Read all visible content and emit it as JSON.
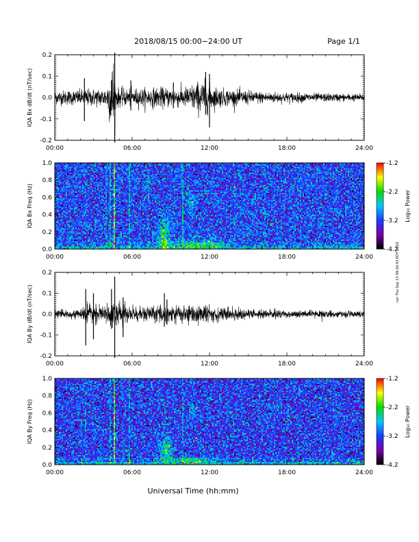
{
  "header": {
    "title": "2018/08/15  00:00−24:00 UT",
    "page": "Page 1/1"
  },
  "side_note": "run Thu Sep 13 09:16:43 EDT 2018",
  "xlabel": "Universal Time (hh:mm)",
  "colorbar": {
    "label": "Log₁₀ Power",
    "ticks": [
      -1.2,
      -2.2,
      -3.2,
      -4.2
    ],
    "tick_labels": [
      "-1.2",
      "-2.2",
      "-3.2",
      "-4.2"
    ],
    "range": [
      -4.2,
      -1.2
    ],
    "stops": [
      "#000000",
      "#7a00a8",
      "#1a3cff",
      "#00c8ff",
      "#00dd00",
      "#ffff00",
      "#ff0000"
    ]
  },
  "chart_data": [
    {
      "type": "line",
      "ylabel": "IQA Bx dB/dt (nT/sec)",
      "xlim": [
        0,
        24
      ],
      "ylim": [
        -0.2,
        0.2
      ],
      "x_tick_labels": [
        "00:00",
        "06:00",
        "12:00",
        "18:00",
        "24:00"
      ],
      "y_tick_labels": [
        "0.2",
        "0.1",
        "0.0",
        "-0.1",
        "-0.2"
      ],
      "y_ticks": [
        0.2,
        0.1,
        0.0,
        -0.1,
        -0.2
      ],
      "envelope": {
        "hours": [
          0,
          2,
          4,
          4.6,
          4.7,
          5,
          6,
          8,
          10,
          11.5,
          12.2,
          13,
          16,
          20,
          24
        ],
        "amp": [
          0.035,
          0.04,
          0.05,
          0.22,
          0.06,
          0.045,
          0.045,
          0.05,
          0.05,
          0.09,
          0.06,
          0.045,
          0.03,
          0.022,
          0.018
        ]
      },
      "spikes": [
        {
          "hour": 2.3,
          "min": -0.11,
          "max": 0.09
        },
        {
          "hour": 4.4,
          "min": -0.06,
          "max": 0.08
        },
        {
          "hour": 4.65,
          "min": -0.21,
          "max": 0.21
        },
        {
          "hour": 5.9,
          "min": -0.06,
          "max": 0.08
        },
        {
          "hour": 9.2,
          "min": -0.05,
          "max": 0.07
        },
        {
          "hour": 12.0,
          "min": -0.14,
          "max": 0.11
        },
        {
          "hour": 11.7,
          "min": -0.08,
          "max": 0.12
        }
      ]
    },
    {
      "type": "heatmap",
      "ylabel": "IQA Bx Freq (Hz)",
      "xlim": [
        0,
        24
      ],
      "ylim": [
        0,
        1.0
      ],
      "x_tick_labels": [
        "00:00",
        "06:00",
        "12:00",
        "18:00",
        "24:00"
      ],
      "y_tick_labels": [
        "1.0",
        "0.8",
        "0.6",
        "0.4",
        "0.2",
        "0.0"
      ],
      "y_ticks": [
        1.0,
        0.8,
        0.6,
        0.4,
        0.2,
        0.0
      ],
      "background_level": -3.2,
      "features": [
        {
          "kind": "blob",
          "hour": 8.5,
          "freq": 0.15,
          "width_h": 0.6,
          "height_f": 0.28,
          "level": -2.2
        },
        {
          "kind": "blob",
          "hour": 10.6,
          "freq": 0.55,
          "width_h": 0.6,
          "height_f": 0.12,
          "level": -2.7
        },
        {
          "kind": "blob",
          "hour": 11.0,
          "freq": 0.05,
          "width_h": 2.5,
          "height_f": 0.08,
          "level": -2.4
        },
        {
          "kind": "stripe",
          "hour": 4.3,
          "level": -2.6
        },
        {
          "kind": "stripe",
          "hour": 4.6,
          "level": -1.8
        },
        {
          "kind": "stripe",
          "hour": 4.0,
          "level": -2.9
        },
        {
          "kind": "stripe",
          "hour": 5.8,
          "level": -2.7
        },
        {
          "kind": "stripe",
          "hour": 7.3,
          "level": -2.9
        },
        {
          "kind": "stripe",
          "hour": 9.95,
          "level": -2.7
        },
        {
          "kind": "stripe",
          "hour": 14.0,
          "level": -3.0
        },
        {
          "kind": "stripe",
          "hour": 16.3,
          "level": -3.0
        },
        {
          "kind": "stripe",
          "hour": 19.1,
          "level": -3.0
        }
      ]
    },
    {
      "type": "line",
      "ylabel": "IQA By dB/dt (nT/sec)",
      "xlim": [
        0,
        24
      ],
      "ylim": [
        -0.2,
        0.2
      ],
      "x_tick_labels": [
        "00:00",
        "06:00",
        "12:00",
        "18:00",
        "24:00"
      ],
      "y_tick_labels": [
        "0.2",
        "0.1",
        "0.0",
        "-0.1",
        "-0.2"
      ],
      "y_ticks": [
        0.2,
        0.1,
        0.0,
        -0.1,
        -0.2
      ],
      "envelope": {
        "hours": [
          0,
          2,
          2.3,
          4,
          4.7,
          5,
          6,
          8,
          9,
          11,
          12.5,
          14,
          18,
          24
        ],
        "amp": [
          0.02,
          0.02,
          0.05,
          0.04,
          0.08,
          0.06,
          0.04,
          0.04,
          0.05,
          0.05,
          0.04,
          0.03,
          0.02,
          0.015
        ]
      },
      "spikes": [
        {
          "hour": 2.4,
          "min": -0.15,
          "max": 0.12
        },
        {
          "hour": 3.0,
          "min": -0.12,
          "max": 0.1
        },
        {
          "hour": 4.4,
          "min": -0.07,
          "max": 0.12
        },
        {
          "hour": 4.65,
          "min": -0.21,
          "max": 0.18
        },
        {
          "hour": 5.3,
          "min": -0.11,
          "max": 0.08
        },
        {
          "hour": 8.5,
          "min": -0.06,
          "max": 0.1
        },
        {
          "hour": 8.7,
          "min": -0.05,
          "max": 0.07
        }
      ]
    },
    {
      "type": "heatmap",
      "ylabel": "IQA By Freq (Hz)",
      "xlim": [
        0,
        24
      ],
      "ylim": [
        0,
        1.0
      ],
      "x_tick_labels": [
        "00:00",
        "06:00",
        "12:00",
        "18:00",
        "24:00"
      ],
      "y_tick_labels": [
        "1.0",
        "0.8",
        "0.6",
        "0.4",
        "0.2",
        "0.0"
      ],
      "y_ticks": [
        1.0,
        0.8,
        0.6,
        0.4,
        0.2,
        0.0
      ],
      "background_level": -3.25,
      "features": [
        {
          "kind": "blob",
          "hour": 8.6,
          "freq": 0.18,
          "width_h": 0.6,
          "height_f": 0.22,
          "level": -2.3
        },
        {
          "kind": "blob",
          "hour": 10.8,
          "freq": 0.62,
          "width_h": 0.5,
          "height_f": 0.12,
          "level": -2.9
        },
        {
          "kind": "blob",
          "hour": 10.5,
          "freq": 0.05,
          "width_h": 2.2,
          "height_f": 0.06,
          "level": -2.5
        },
        {
          "kind": "stripe",
          "hour": 4.3,
          "level": -2.7
        },
        {
          "kind": "stripe",
          "hour": 4.6,
          "level": -2.0
        },
        {
          "kind": "stripe",
          "hour": 5.8,
          "level": -2.8
        },
        {
          "kind": "stripe",
          "hour": 2.4,
          "level": -3.0
        },
        {
          "kind": "stripe",
          "hour": 9.95,
          "level": -2.7
        }
      ]
    }
  ]
}
